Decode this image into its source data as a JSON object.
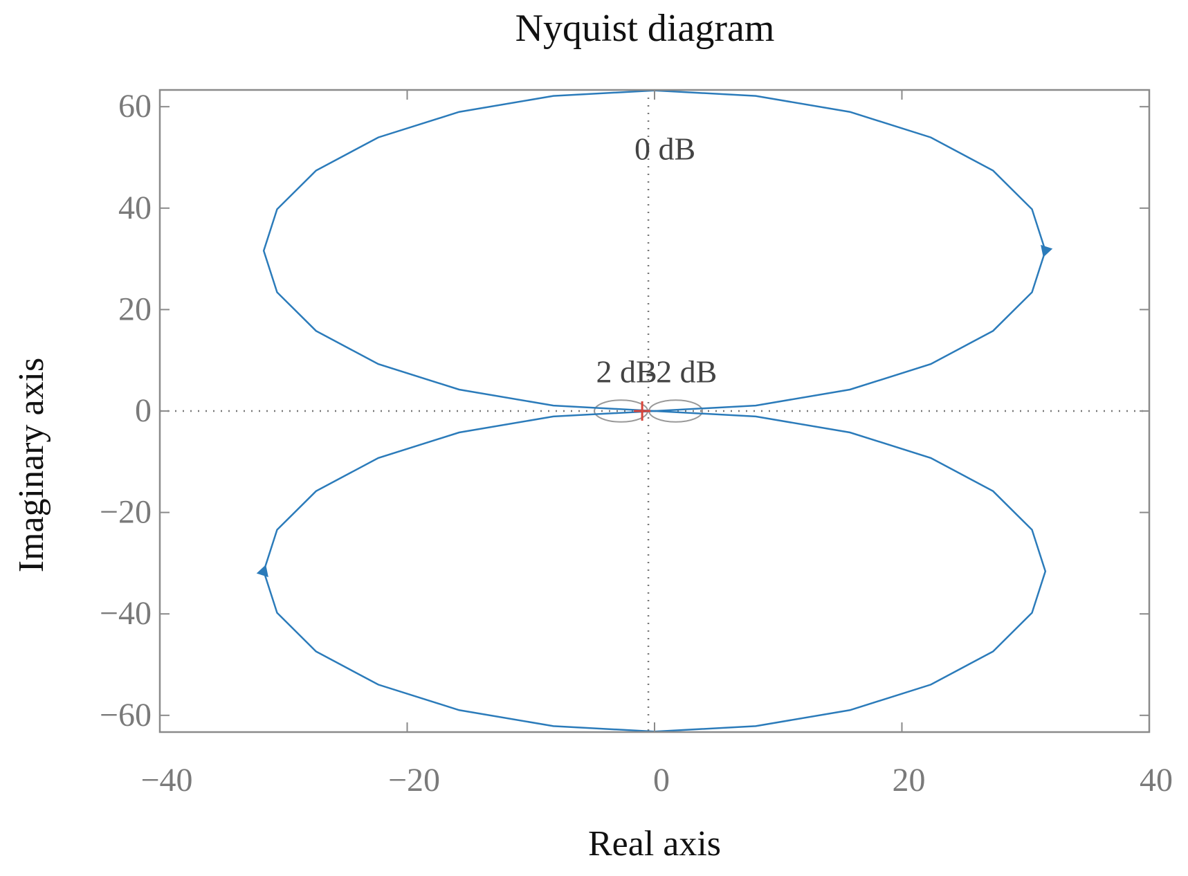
{
  "chart_data": {
    "type": "nyquist",
    "title": "Nyquist diagram",
    "x_label": "Real axis",
    "y_label": "Imaginary axis",
    "xlim": [
      -40,
      40
    ],
    "ylim": [
      -63.3,
      63.3
    ],
    "xticks": [
      {
        "value": -40,
        "label": "−40"
      },
      {
        "value": -20,
        "label": "−20"
      },
      0,
      20,
      40
    ],
    "yticks": [
      {
        "value": -60,
        "label": "−60"
      },
      {
        "value": -40,
        "label": "−40"
      },
      {
        "value": -20,
        "label": "−20"
      },
      0,
      20,
      40,
      60
    ],
    "series": [
      {
        "color": "#2b7bba",
        "x": [
          0,
          -8.18,
          -15.8,
          -22.34,
          -27.37,
          -30.52,
          -31.6,
          -30.52,
          -27.37,
          -22.34,
          -15.8,
          -8.18,
          0,
          8.18,
          15.8,
          22.34,
          27.37,
          30.52,
          31.6,
          30.52,
          27.37,
          22.34,
          15.8,
          8.18,
          0
        ],
        "y": [
          0,
          1.08,
          4.23,
          9.26,
          15.8,
          23.42,
          31.6,
          39.78,
          47.4,
          53.94,
          58.97,
          62.12,
          63.2,
          62.12,
          58.97,
          53.94,
          47.4,
          39.78,
          31.6,
          23.42,
          15.8,
          9.26,
          4.23,
          1.08,
          0
        ]
      },
      {
        "color": "#2b7bba",
        "x": [
          0,
          8.18,
          15.8,
          22.34,
          27.37,
          30.52,
          31.6,
          30.52,
          27.37,
          22.34,
          15.8,
          8.18,
          0,
          -8.18,
          -15.8,
          -22.34,
          -27.37,
          -30.52,
          -31.6,
          -30.52,
          -27.37,
          -22.34,
          -15.8,
          -8.18,
          0
        ],
        "y": [
          0,
          -1.08,
          -4.23,
          -9.26,
          -15.8,
          -23.42,
          -31.6,
          -39.78,
          -47.4,
          -53.94,
          -58.97,
          -62.12,
          -63.2,
          -62.12,
          -58.97,
          -53.94,
          -47.4,
          -39.78,
          -31.6,
          -23.42,
          -15.8,
          -9.26,
          -4.23,
          -1.08,
          0
        ]
      }
    ],
    "m_circles": [
      {
        "db": 0,
        "label": "0 dB"
      },
      {
        "db": 2,
        "label": "2 dB"
      },
      {
        "db": -2,
        "label": "-2 dB"
      }
    ],
    "critical_point": [
      -1,
      0
    ]
  }
}
